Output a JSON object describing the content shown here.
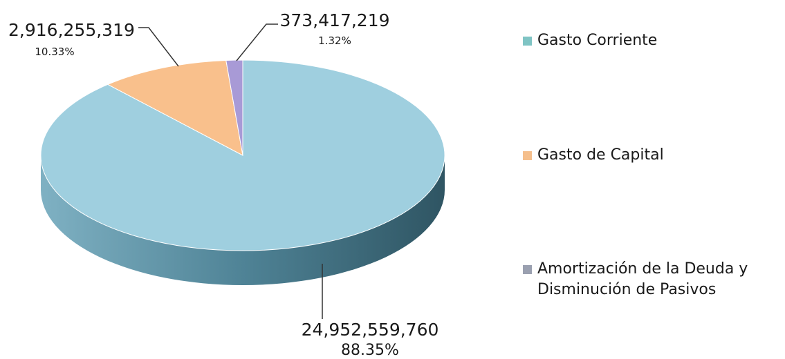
{
  "chart_data": {
    "type": "pie",
    "title": "",
    "categories": [
      "Gasto Corriente",
      "Gasto de Capital",
      "Amortización de la Deuda y Disminución de Pasivos"
    ],
    "values": [
      24952559760,
      2916255319,
      373417219
    ],
    "value_labels": [
      "24,952,559,760",
      "2,916,255,319",
      "373,417,219"
    ],
    "percent_labels": [
      "88.35%",
      "10.33%",
      "1.32%"
    ],
    "colors": [
      "#9fcfdf",
      "#f9c08c",
      "#a89ad6"
    ],
    "side_colors": [
      "#3f6f80",
      "#b27c4e",
      "#6d5f9c"
    ],
    "style": "3d-pie",
    "legend_position": "right"
  },
  "legend": {
    "items": [
      {
        "label": "Gasto Corriente",
        "color": "#7fc4c4"
      },
      {
        "label": "Gasto de Capital",
        "color": "#f5bf8c"
      },
      {
        "label": "Amortización de la Deuda y Disminución de Pasivos",
        "color": "#9aa0b0"
      }
    ]
  }
}
